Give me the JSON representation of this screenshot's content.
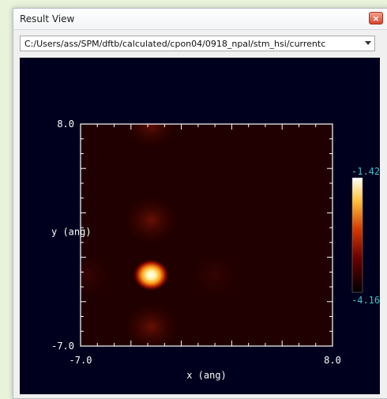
{
  "window": {
    "title": "Result View",
    "close_label": "×"
  },
  "path_select": {
    "value": "C:/Users/ass/SPM/dftb/calculated/cpon04/0918_npal/stm_hsi/currentc"
  },
  "colors": {
    "plot_background": "#00001e",
    "axis": "#ffffff",
    "colorbar_label": "#3fbfc4"
  },
  "chart_data": {
    "type": "heatmap",
    "xlabel": "x (ang)",
    "ylabel": "y (ang)",
    "xlim": [
      -7.0,
      8.0
    ],
    "ylim": [
      -7.0,
      8.0
    ],
    "x_tick_labels": [
      "-7.0",
      "8.0"
    ],
    "y_tick_labels": [
      "8.0",
      "-7.0"
    ],
    "colorbar": {
      "max_label": "-1.42",
      "min_label": "-4.16",
      "range": [
        -4.16,
        -1.42
      ],
      "colormap": "black-red-orange-yellow-white"
    },
    "features": [
      {
        "label": "main-peak",
        "x": -2.8,
        "y": -2.2,
        "intensity": 1.0,
        "sigma": 0.55
      },
      {
        "label": "upper-blob",
        "x": -2.8,
        "y": 1.5,
        "intensity": 0.22,
        "sigma": 0.8
      },
      {
        "label": "lower-blob",
        "x": -2.8,
        "y": -5.7,
        "intensity": 0.22,
        "sigma": 0.8
      },
      {
        "label": "top-edge-blob",
        "x": -2.8,
        "y": 7.9,
        "intensity": 0.2,
        "sigma": 0.75
      },
      {
        "label": "left-faint",
        "x": -6.6,
        "y": -2.2,
        "intensity": 0.07,
        "sigma": 0.8
      },
      {
        "label": "center-faint",
        "x": 1.0,
        "y": -2.2,
        "intensity": 0.06,
        "sigma": 0.8
      }
    ]
  }
}
